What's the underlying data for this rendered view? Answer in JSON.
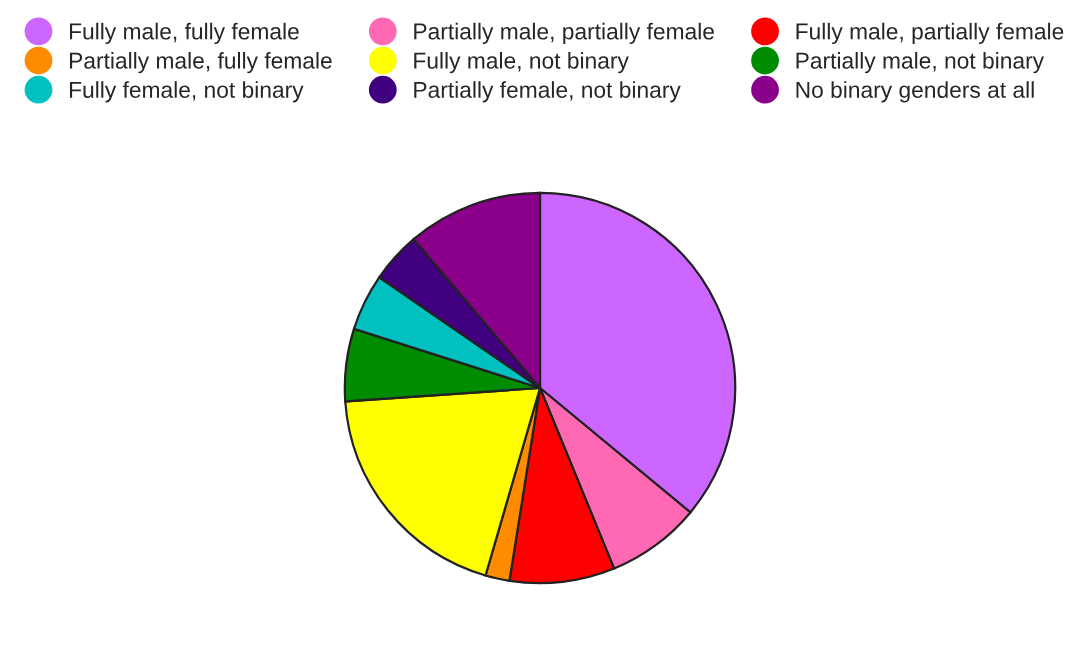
{
  "chart_data": {
    "type": "pie",
    "categories": [
      "Fully male, fully female",
      "Partially male, partially female",
      "Fully male, partially female",
      "Partially male, fully female",
      "Fully male, not binary",
      "Partially male, not binary",
      "Fully female, not binary",
      "Partially female, not binary",
      "No binary genders at all"
    ],
    "values": [
      36,
      7.8,
      8.7,
      2,
      19.4,
      6,
      4.7,
      4.2,
      11.2
    ],
    "colors": [
      "#cc66ff",
      "#ff69b4",
      "#ff0000",
      "#ff8c00",
      "#ffff00",
      "#008c00",
      "#00c0c0",
      "#400080",
      "#8b008b"
    ],
    "legend": "top"
  }
}
